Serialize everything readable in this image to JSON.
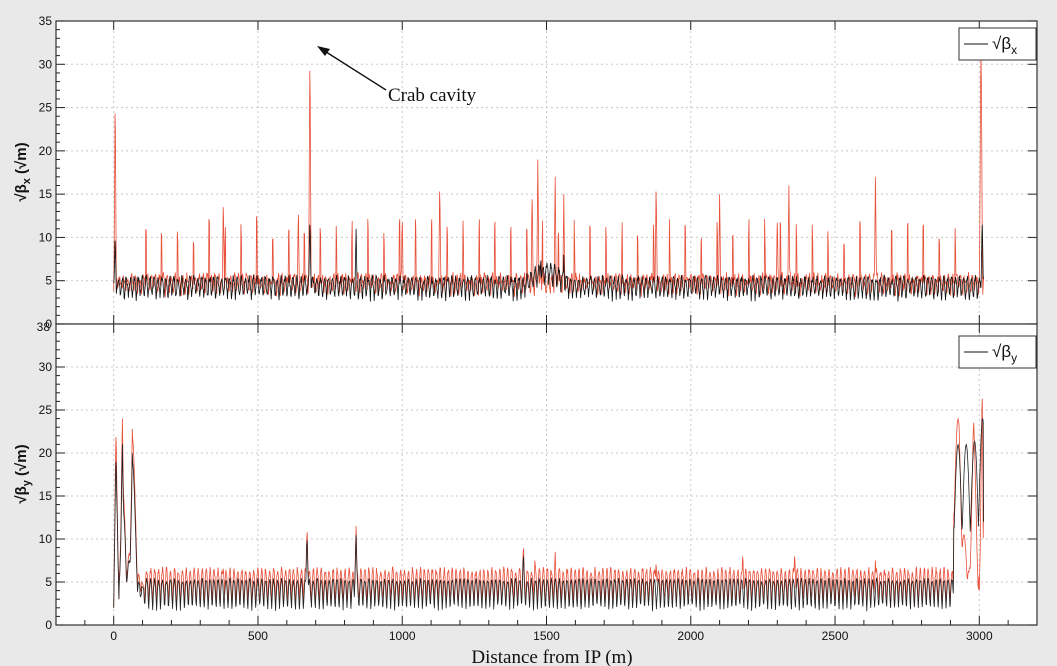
{
  "chart_data": [
    {
      "type": "line",
      "panel": "top",
      "ylabel": "√β_x (√m)",
      "ylabel_main": "√β",
      "ylabel_sub": "x",
      "ylabel_unit": " (√m)",
      "ylim": [
        0,
        35
      ],
      "xlim": [
        -200,
        3200
      ],
      "yticks": [
        "0",
        "5",
        "10",
        "15",
        "20",
        "25",
        "30",
        "35"
      ],
      "grid": true,
      "legend": {
        "placement": "top-right",
        "label_main": "√β",
        "label_sub": "x"
      },
      "annotation": {
        "text": "Crab cavity",
        "x": 680,
        "y": 32.5
      },
      "series": [
        {
          "color": "#e8503a",
          "description_points": [
            [
              0,
              4
            ],
            [
              5,
              25
            ],
            [
              12,
              8
            ],
            [
              20,
              11
            ],
            [
              30,
              4
            ],
            [
              80,
              9
            ],
            [
              100,
              4
            ],
            [
              200,
              12
            ],
            [
              260,
              9
            ],
            [
              300,
              4
            ],
            [
              380,
              15
            ],
            [
              400,
              5
            ],
            [
              500,
              11
            ],
            [
              600,
              12
            ],
            [
              640,
              14
            ],
            [
              680,
              32.5
            ],
            [
              700,
              9
            ],
            [
              800,
              12
            ],
            [
              850,
              5
            ],
            [
              900,
              12
            ],
            [
              1000,
              13
            ],
            [
              1100,
              12
            ],
            [
              1130,
              17
            ],
            [
              1200,
              12
            ],
            [
              1300,
              12
            ],
            [
              1400,
              12
            ],
            [
              1450,
              16
            ],
            [
              1470,
              19
            ],
            [
              1500,
              12
            ],
            [
              1530,
              17
            ],
            [
              1560,
              15
            ],
            [
              1600,
              12
            ],
            [
              1700,
              12
            ],
            [
              1800,
              12
            ],
            [
              1880,
              17
            ],
            [
              1900,
              12
            ],
            [
              2000,
              12
            ],
            [
              2100,
              15
            ],
            [
              2200,
              12
            ],
            [
              2300,
              13
            ],
            [
              2340,
              16
            ],
            [
              2400,
              12
            ],
            [
              2500,
              12
            ],
            [
              2600,
              12
            ],
            [
              2640,
              17
            ],
            [
              2700,
              12
            ],
            [
              2800,
              12
            ],
            [
              2900,
              12
            ],
            [
              2950,
              9
            ],
            [
              2990,
              12
            ],
            [
              3005,
              31
            ],
            [
              3015,
              5
            ]
          ],
          "baseline_min": 1,
          "typical_peak": 12
        },
        {
          "color": "#111111",
          "baseline_min": 2,
          "typical_peak": 5,
          "peaks": [
            [
              5,
              10.5
            ],
            [
              680,
              12.5
            ],
            [
              840,
              11
            ],
            [
              1480,
              8
            ],
            [
              1560,
              8
            ],
            [
              3010,
              12.5
            ]
          ]
        }
      ]
    },
    {
      "type": "line",
      "panel": "bottom",
      "xlabel": "Distance from IP (m)",
      "ylabel": "√β_y (√m)",
      "ylabel_main": "√β",
      "ylabel_sub": "y",
      "ylabel_unit": " (√m)",
      "ylim": [
        0,
        35
      ],
      "xlim": [
        -200,
        3200
      ],
      "xticks": [
        "0",
        "500",
        "1000",
        "1500",
        "2000",
        "2500",
        "3000"
      ],
      "xtick_values": [
        0,
        500,
        1000,
        1500,
        2000,
        2500,
        3000
      ],
      "yticks": [
        "0",
        "5",
        "10",
        "15",
        "20",
        "25",
        "30"
      ],
      "grid": true,
      "legend": {
        "placement": "top-right",
        "label_main": "√β",
        "label_sub": "y"
      },
      "series": [
        {
          "color": "#e8503a",
          "key_points": [
            [
              0,
              1
            ],
            [
              8,
              23
            ],
            [
              18,
              2
            ],
            [
              30,
              24
            ],
            [
              45,
              4
            ],
            [
              65,
              24
            ],
            [
              85,
              5
            ],
            [
              110,
              3
            ],
            [
              380,
              7
            ],
            [
              670,
              11.5
            ],
            [
              840,
              11.5
            ],
            [
              1420,
              9.5
            ],
            [
              1460,
              8
            ],
            [
              1530,
              8.5
            ],
            [
              1880,
              7.5
            ],
            [
              2180,
              8.5
            ],
            [
              2360,
              8.5
            ],
            [
              2640,
              7.5
            ],
            [
              2930,
              24
            ],
            [
              2960,
              4
            ],
            [
              2980,
              24.5
            ],
            [
              3000,
              3
            ],
            [
              3010,
              28
            ],
            [
              3015,
              1
            ]
          ],
          "baseline_range": [
            2,
            6
          ]
        },
        {
          "color": "#222222",
          "key_points": [
            [
              0,
              1
            ],
            [
              8,
              20
            ],
            [
              18,
              2
            ],
            [
              30,
              21
            ],
            [
              45,
              4
            ],
            [
              65,
              21
            ],
            [
              85,
              4
            ],
            [
              110,
              3
            ],
            [
              670,
              10.5
            ],
            [
              840,
              10.5
            ],
            [
              1420,
              8.5
            ],
            [
              2930,
              21
            ],
            [
              2980,
              21
            ],
            [
              3010,
              24
            ]
          ],
          "baseline_range": [
            1.5,
            5
          ]
        }
      ]
    }
  ],
  "annotation_text": "Crab cavity",
  "xlabel": "Distance from IP (m)",
  "top_y_bottom_label": "38",
  "colors": {
    "optics_red": "#e8503a",
    "optics_black": "#111111",
    "background": "#e9e9e9",
    "grid": "#c8c8c8"
  }
}
